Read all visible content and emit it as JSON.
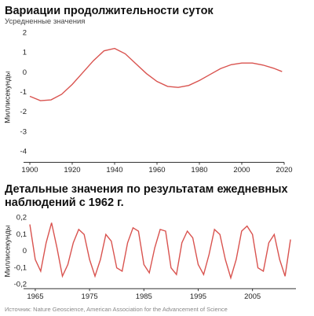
{
  "chart_data": [
    {
      "type": "line",
      "title": "Вариации продолжительности суток",
      "subtitle": "Усредненные значения",
      "y_label": "Миллисекунды",
      "x": [
        1900,
        1905,
        1910,
        1915,
        1920,
        1925,
        1930,
        1935,
        1940,
        1945,
        1950,
        1955,
        1960,
        1965,
        1970,
        1975,
        1980,
        1985,
        1990,
        1995,
        2000,
        2005,
        2010,
        2015,
        2019
      ],
      "series": [
        {
          "color": "#d9534f",
          "values": [
            -1.2,
            -1.42,
            -1.38,
            -1.1,
            -0.6,
            0,
            0.6,
            1.1,
            1.22,
            0.95,
            0.45,
            -0.05,
            -0.45,
            -0.7,
            -0.75,
            -0.65,
            -0.4,
            -0.1,
            0.2,
            0.4,
            0.48,
            0.48,
            0.38,
            0.22,
            0.05
          ]
        }
      ],
      "xlim": [
        1900,
        2020
      ],
      "xticks": [
        1900,
        1920,
        1940,
        1960,
        1980,
        2000,
        2020
      ],
      "ylim": [
        -4.5,
        2
      ],
      "yticks": [
        2,
        1,
        0,
        -1,
        -2,
        -3,
        -4
      ]
    },
    {
      "type": "line",
      "title": "Детальные значения по результатам ежедневных наблюдений с 1962 г.",
      "y_label": "Миллисекунды",
      "x": [
        1964,
        1965,
        1966,
        1967,
        1968,
        1969,
        1970,
        1971,
        1972,
        1973,
        1974,
        1975,
        1976,
        1977,
        1978,
        1979,
        1980,
        1981,
        1982,
        1983,
        1984,
        1985,
        1986,
        1987,
        1988,
        1989,
        1990,
        1991,
        1992,
        1993,
        1994,
        1995,
        1996,
        1997,
        1998,
        1999,
        2000,
        2001,
        2002,
        2003,
        2004,
        2005,
        2006,
        2007,
        2008,
        2009,
        2010,
        2011,
        2012
      ],
      "series": [
        {
          "color": "#d9534f",
          "values": [
            0.16,
            -0.05,
            -0.12,
            0.05,
            0.17,
            0.02,
            -0.15,
            -0.08,
            0.05,
            0.13,
            0.1,
            -0.05,
            -0.15,
            -0.05,
            0.1,
            0.06,
            -0.1,
            -0.12,
            0.05,
            0.14,
            0.12,
            -0.08,
            -0.13,
            0.02,
            0.13,
            0.12,
            -0.1,
            -0.14,
            0.05,
            0.12,
            0.08,
            -0.08,
            -0.14,
            -0.02,
            0.13,
            0.1,
            -0.05,
            -0.16,
            -0.05,
            0.12,
            0.15,
            0.1,
            -0.1,
            -0.12,
            0.05,
            0.1,
            -0.05,
            -0.15,
            0.07
          ]
        }
      ],
      "xlim": [
        1964,
        2013
      ],
      "xticks": [
        1965,
        1975,
        1985,
        1995,
        2005
      ],
      "ylim": [
        -0.22,
        0.22
      ],
      "yticks": [
        {
          "value": 0.2,
          "label": "0,2"
        },
        {
          "value": 0.1,
          "label": "0,1"
        },
        0,
        {
          "value": -0.1,
          "label": "-0,1"
        },
        {
          "value": -0.2,
          "label": "-0,2"
        }
      ]
    }
  ],
  "source": "Источник: Nature Geoscience, American Association for the Advancement of Science"
}
